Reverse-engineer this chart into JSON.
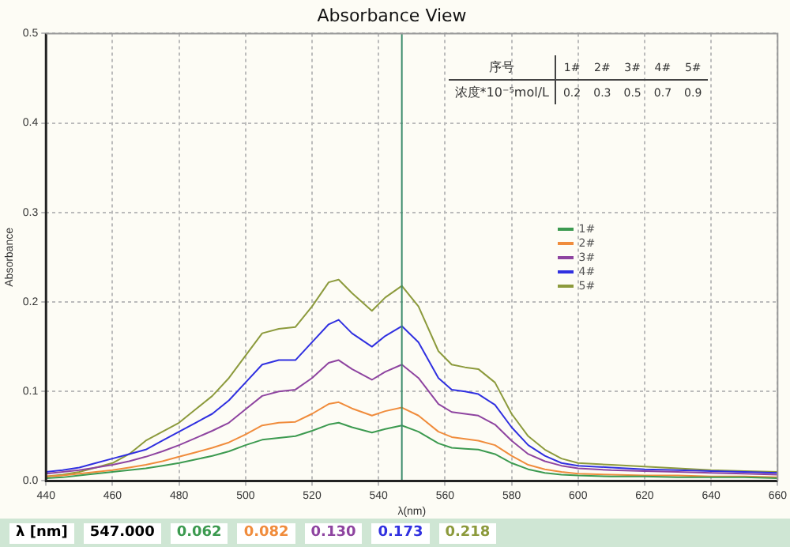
{
  "chart_data": {
    "type": "line",
    "title": "Absorbance View",
    "xlabel": "λ(nm)",
    "ylabel": "Absorbance",
    "x": [
      440,
      445,
      450,
      455,
      460,
      465,
      470,
      475,
      480,
      485,
      490,
      495,
      500,
      505,
      510,
      515,
      520,
      525,
      528,
      532,
      538,
      542,
      547,
      552,
      558,
      562,
      566,
      570,
      575,
      580,
      585,
      590,
      595,
      600,
      610,
      620,
      630,
      640,
      650,
      660
    ],
    "series": [
      {
        "name": "1#",
        "color": "#3c9a50",
        "values": [
          0.003,
          0.004,
          0.006,
          0.008,
          0.01,
          0.012,
          0.014,
          0.017,
          0.02,
          0.024,
          0.028,
          0.033,
          0.04,
          0.046,
          0.048,
          0.05,
          0.056,
          0.063,
          0.065,
          0.06,
          0.054,
          0.058,
          0.062,
          0.055,
          0.042,
          0.037,
          0.036,
          0.035,
          0.03,
          0.02,
          0.013,
          0.009,
          0.007,
          0.006,
          0.005,
          0.005,
          0.004,
          0.004,
          0.004,
          0.003
        ]
      },
      {
        "name": "2#",
        "color": "#f08c3c",
        "values": [
          0.005,
          0.006,
          0.008,
          0.01,
          0.012,
          0.015,
          0.018,
          0.022,
          0.027,
          0.032,
          0.037,
          0.043,
          0.052,
          0.062,
          0.065,
          0.066,
          0.075,
          0.086,
          0.088,
          0.081,
          0.073,
          0.078,
          0.082,
          0.073,
          0.055,
          0.049,
          0.047,
          0.045,
          0.04,
          0.028,
          0.018,
          0.013,
          0.01,
          0.008,
          0.007,
          0.006,
          0.006,
          0.005,
          0.005,
          0.004
        ]
      },
      {
        "name": "3#",
        "color": "#8e44a0",
        "values": [
          0.008,
          0.01,
          0.012,
          0.015,
          0.018,
          0.022,
          0.027,
          0.033,
          0.04,
          0.048,
          0.056,
          0.065,
          0.08,
          0.095,
          0.1,
          0.102,
          0.115,
          0.132,
          0.135,
          0.125,
          0.113,
          0.122,
          0.13,
          0.115,
          0.086,
          0.077,
          0.075,
          0.073,
          0.063,
          0.045,
          0.03,
          0.022,
          0.017,
          0.014,
          0.012,
          0.011,
          0.01,
          0.009,
          0.008,
          0.007
        ]
      },
      {
        "name": "4#",
        "color": "#3030e0",
        "values": [
          0.01,
          0.012,
          0.015,
          0.02,
          0.025,
          0.03,
          0.035,
          0.045,
          0.055,
          0.065,
          0.075,
          0.09,
          0.11,
          0.13,
          0.135,
          0.135,
          0.155,
          0.175,
          0.18,
          0.165,
          0.15,
          0.162,
          0.173,
          0.155,
          0.115,
          0.102,
          0.1,
          0.097,
          0.085,
          0.06,
          0.04,
          0.028,
          0.02,
          0.017,
          0.015,
          0.013,
          0.012,
          0.011,
          0.01,
          0.009
        ]
      },
      {
        "name": "5#",
        "color": "#8c9a3c",
        "values": [
          0.005,
          0.007,
          0.01,
          0.015,
          0.02,
          0.03,
          0.045,
          0.055,
          0.065,
          0.08,
          0.095,
          0.115,
          0.14,
          0.165,
          0.17,
          0.172,
          0.195,
          0.222,
          0.225,
          0.21,
          0.19,
          0.205,
          0.218,
          0.195,
          0.145,
          0.13,
          0.127,
          0.125,
          0.11,
          0.075,
          0.05,
          0.035,
          0.025,
          0.02,
          0.018,
          0.016,
          0.014,
          0.012,
          0.011,
          0.01
        ]
      }
    ],
    "xlim": [
      440,
      660
    ],
    "xticks": [
      440,
      460,
      480,
      500,
      520,
      540,
      560,
      580,
      600,
      620,
      640,
      660
    ],
    "ylim": [
      0,
      0.5
    ],
    "yticks": [
      {
        "value": 0,
        "label": "0.0"
      },
      0.1,
      0.2,
      0.3,
      0.4,
      0.5
    ],
    "grid": true,
    "legend": "center",
    "marker": "none",
    "line_style": "solid",
    "ref_lines": [
      {
        "axis": "x",
        "value": 547,
        "color": "#3c8c6c"
      }
    ],
    "annotations": [
      "序号",
      "1#",
      "2#",
      "3#",
      "4#",
      "5#",
      "浓度*10⁻⁵mol/L",
      "0.2",
      "0.3",
      "0.5",
      "0.7",
      "0.9",
      "λ [nm]",
      "547.000",
      "0.062",
      "0.082",
      "0.130",
      "0.173",
      "0.218"
    ]
  }
}
